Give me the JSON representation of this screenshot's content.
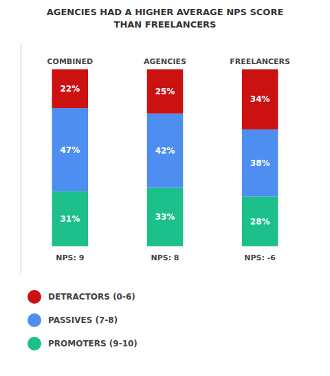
{
  "chart_data": {
    "type": "bar",
    "stacked": true,
    "title": "AGENCIES HAD A HIGHER AVERAGE NPS SCORE\nTHAN FREELANCERS",
    "categories": [
      "COMBINED",
      "AGENCIES",
      "FREELANCERS"
    ],
    "annotations": [
      "NPS: 9",
      "NPS: 8",
      "NPS: -6"
    ],
    "series": [
      {
        "name": "DETRACTORS (0-6)",
        "color": "#cc1111",
        "values": [
          22,
          25,
          34
        ],
        "value_labels": [
          "22%",
          "25%",
          "34%"
        ]
      },
      {
        "name": "PASSIVES (7-8)",
        "color": "#4d8ef0",
        "values": [
          47,
          42,
          38
        ],
        "value_labels": [
          "47%",
          "42%",
          "38%"
        ]
      },
      {
        "name": "PROMOTERS (9-10)",
        "color": "#1dbf8a",
        "values": [
          31,
          33,
          28
        ],
        "value_labels": [
          "31%",
          "33%",
          "28%"
        ]
      }
    ],
    "ylim": [
      -15,
      115
    ],
    "grid": false,
    "legend": "bottom",
    "data_labels": true,
    "tick_labels": false
  }
}
